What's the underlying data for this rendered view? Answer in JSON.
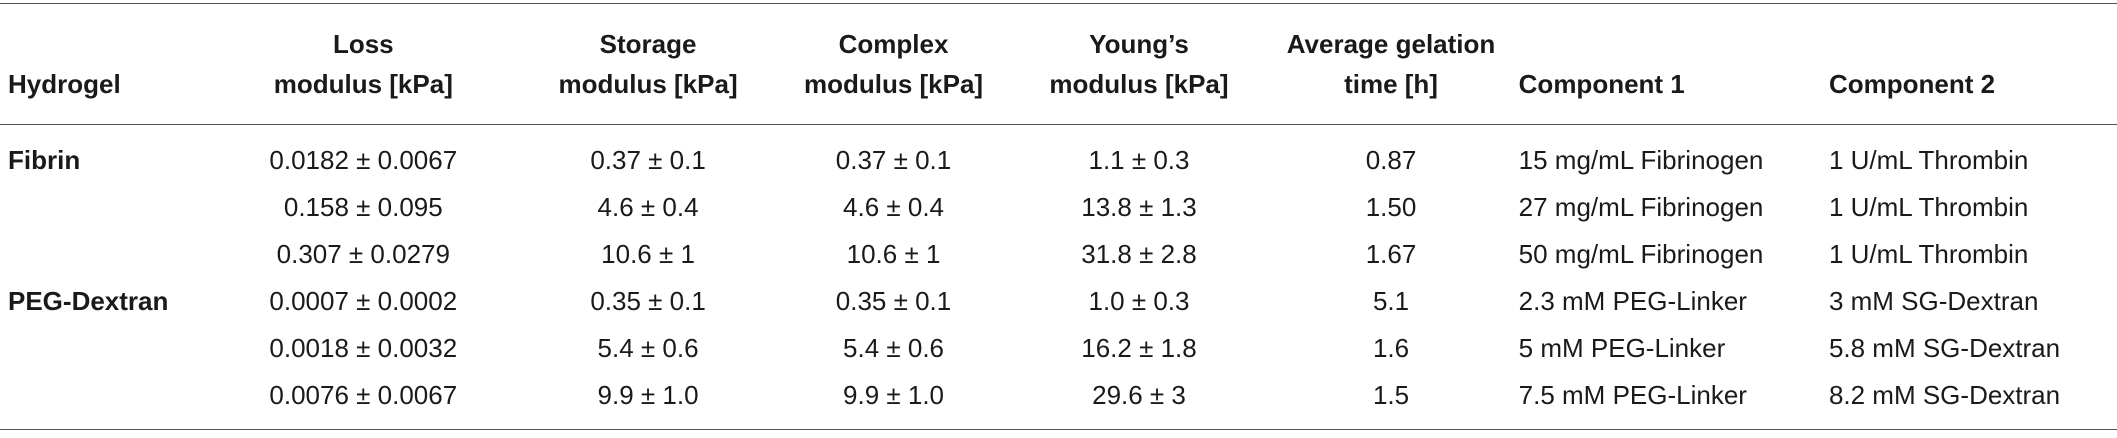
{
  "table": {
    "headers": [
      "Hydrogel",
      "Loss modulus [kPa]",
      "Storage modulus [kPa]",
      "Complex modulus [kPa]",
      "Young’s modulus [kPa]",
      "Average gelation time [h]",
      "Component 1",
      "Component 2"
    ],
    "header_lines": [
      [
        "Hydrogel"
      ],
      [
        "Loss",
        "modulus [kPa]"
      ],
      [
        "Storage",
        "modulus [kPa]"
      ],
      [
        "Complex",
        "modulus [kPa]"
      ],
      [
        "Young’s",
        "modulus [kPa]"
      ],
      [
        "Average gelation",
        "time [h]"
      ],
      [
        "Component 1"
      ],
      [
        "Component 2"
      ]
    ],
    "rows": [
      [
        "Fibrin",
        "0.0182 ± 0.0067",
        "0.37 ± 0.1",
        "0.37 ± 0.1",
        "1.1 ± 0.3",
        "0.87",
        "15 mg/mL Fibrinogen",
        "1 U/mL Thrombin"
      ],
      [
        "",
        "0.158 ± 0.095",
        "4.6 ± 0.4",
        "4.6 ± 0.4",
        "13.8 ± 1.3",
        "1.50",
        "27 mg/mL Fibrinogen",
        "1 U/mL Thrombin"
      ],
      [
        "",
        "0.307 ± 0.0279",
        "10.6 ± 1",
        "10.6 ± 1",
        "31.8 ± 2.8",
        "1.67",
        "50 mg/mL Fibrinogen",
        "1 U/mL Thrombin"
      ],
      [
        "PEG-Dextran",
        "0.0007 ± 0.0002",
        "0.35 ± 0.1",
        "0.35 ± 0.1",
        "1.0 ± 0.3",
        "5.1",
        "2.3 mM PEG-Linker",
        "3 mM SG-Dextran"
      ],
      [
        "",
        "0.0018 ± 0.0032",
        "5.4 ± 0.6",
        "5.4 ± 0.6",
        "16.2 ± 1.8",
        "1.6",
        "5 mM PEG-Linker",
        "5.8 mM SG-Dextran"
      ],
      [
        "",
        "0.0076 ± 0.0067",
        "9.9 ± 1.0",
        "9.9 ± 1.0",
        "29.6 ± 3",
        "1.5",
        "7.5 mM PEG-Linker",
        "8.2 mM SG-Dextran"
      ]
    ]
  }
}
